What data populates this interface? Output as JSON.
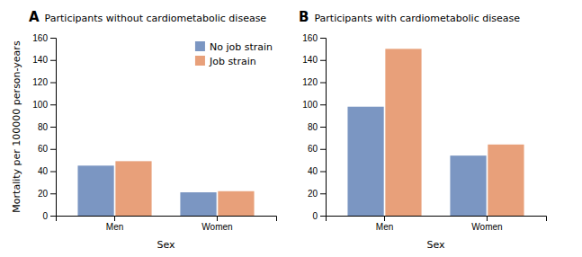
{
  "chart_data": [
    {
      "type": "bar",
      "title": "A",
      "subtitle": "Participants without cardiometabolic disease",
      "categories": [
        "Men",
        "Women"
      ],
      "series": [
        {
          "name": "No job strain",
          "color": "#7b96c2",
          "values": [
            45,
            21
          ]
        },
        {
          "name": "Job strain",
          "color": "#e8a07a",
          "values": [
            49,
            22
          ]
        }
      ],
      "x_label": "Sex",
      "y_label": "Mortality per 100000 person-years",
      "ylim": [
        0,
        160
      ],
      "yticks": [
        0,
        20,
        40,
        60,
        80,
        100,
        120,
        140,
        160
      ],
      "grid": false,
      "legend": "upper right"
    },
    {
      "type": "bar",
      "title": "B",
      "subtitle": "Participants with cardiometabolic disease",
      "categories": [
        "Men",
        "Women"
      ],
      "series": [
        {
          "name": "No job strain",
          "color": "#7b96c2",
          "values": [
            98,
            54
          ]
        },
        {
          "name": "Job strain",
          "color": "#e8a07a",
          "values": [
            150,
            64
          ]
        }
      ],
      "x_label": "Sex",
      "ylim": [
        0,
        160
      ],
      "yticks": [
        0,
        20,
        40,
        60,
        80,
        100,
        120,
        140,
        160
      ],
      "grid": false,
      "legend": false
    }
  ]
}
